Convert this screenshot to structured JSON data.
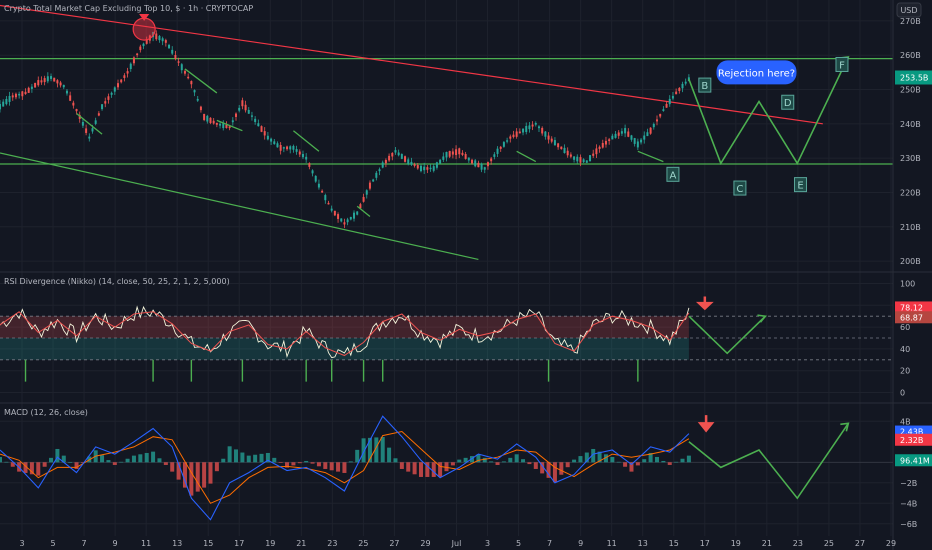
{
  "header": {
    "title": "Crypto Total Market Cap Excluding Top 10, $ · 1h · CRYPTOCAP",
    "currency_button": "USD"
  },
  "chart_data": [
    {
      "type": "line",
      "name": "Price pane",
      "title": "Crypto Total Market Cap Excluding Top 10, $ · 1h · CRYPTOCAP",
      "x_tick_labels": [
        "3",
        "5",
        "7",
        "9",
        "11",
        "13",
        "15",
        "17",
        "19",
        "21",
        "23",
        "25",
        "27",
        "29",
        "Jul",
        "3",
        "5",
        "7",
        "9",
        "11",
        "13",
        "15",
        "17",
        "19",
        "21",
        "23",
        "25",
        "27",
        "29"
      ],
      "y_tick_labels": [
        "270B",
        "260B",
        "250B",
        "240B",
        "230B",
        "220B",
        "210B",
        "200B"
      ],
      "ylim": [
        198,
        272
      ],
      "price_badge": "253.5B",
      "horizontal_levels": [
        259,
        228.3
      ],
      "price_series": [
        [
          0,
          245
        ],
        [
          2,
          248
        ],
        [
          4,
          249
        ],
        [
          6,
          252
        ],
        [
          8,
          253.5
        ],
        [
          10,
          251
        ],
        [
          12,
          244
        ],
        [
          14,
          236
        ],
        [
          16,
          245
        ],
        [
          18,
          250
        ],
        [
          20,
          255
        ],
        [
          22,
          262
        ],
        [
          24,
          266
        ],
        [
          26,
          264
        ],
        [
          28,
          258
        ],
        [
          30,
          252
        ],
        [
          32,
          242
        ],
        [
          34,
          240
        ],
        [
          36,
          239
        ],
        [
          38,
          246
        ],
        [
          40,
          241
        ],
        [
          42,
          236
        ],
        [
          44,
          233
        ],
        [
          46,
          233
        ],
        [
          48,
          230
        ],
        [
          50,
          222
        ],
        [
          52,
          215
        ],
        [
          54,
          211
        ],
        [
          56,
          214
        ],
        [
          58,
          222
        ],
        [
          60,
          228
        ],
        [
          62,
          232
        ],
        [
          64,
          229
        ],
        [
          66,
          227
        ],
        [
          68,
          227
        ],
        [
          70,
          231
        ],
        [
          72,
          232
        ],
        [
          74,
          229
        ],
        [
          76,
          227
        ],
        [
          78,
          232
        ],
        [
          80,
          236
        ],
        [
          82,
          238
        ],
        [
          84,
          240
        ],
        [
          86,
          236
        ],
        [
          88,
          233
        ],
        [
          90,
          230
        ],
        [
          92,
          229
        ],
        [
          94,
          233
        ],
        [
          96,
          236
        ],
        [
          98,
          238
        ],
        [
          100,
          234
        ],
        [
          102,
          238
        ],
        [
          104,
          244
        ],
        [
          106,
          249
        ],
        [
          108,
          253
        ]
      ],
      "projection": [
        [
          108,
          253
        ],
        [
          113,
          228.5
        ],
        [
          119,
          246.5
        ],
        [
          125,
          228.5
        ],
        [
          133,
          259.5
        ]
      ],
      "annotations": [
        {
          "label": "A",
          "x": 105.5,
          "y": 225
        },
        {
          "label": "B",
          "x": 110.5,
          "y": 251
        },
        {
          "label": "C",
          "x": 116,
          "y": 221
        },
        {
          "label": "D",
          "x": 123.5,
          "y": 246
        },
        {
          "label": "E",
          "x": 125.5,
          "y": 222
        },
        {
          "label": "F",
          "x": 132,
          "y": 257
        }
      ],
      "callout": "Rejection here?"
    },
    {
      "type": "line",
      "name": "RSI pane",
      "title": "RSI Divergence (Nikko) (14, close, 50, 25, 2, 1, 2, 5,000)",
      "y_tick_labels": [
        "100",
        "80",
        "60",
        "40",
        "20",
        "0"
      ],
      "ylim": [
        -5,
        105
      ],
      "values_badges": [
        "78.12",
        "68.87"
      ],
      "overbought": 70,
      "oversold": 30,
      "rsi_series": [
        [
          0,
          62
        ],
        [
          3,
          74
        ],
        [
          6,
          55
        ],
        [
          9,
          66
        ],
        [
          12,
          52
        ],
        [
          15,
          70
        ],
        [
          18,
          60
        ],
        [
          21,
          72
        ],
        [
          24,
          74
        ],
        [
          27,
          63
        ],
        [
          30,
          45
        ],
        [
          33,
          38
        ],
        [
          36,
          56
        ],
        [
          39,
          62
        ],
        [
          42,
          44
        ],
        [
          45,
          40
        ],
        [
          48,
          56
        ],
        [
          51,
          41
        ],
        [
          54,
          34
        ],
        [
          57,
          46
        ],
        [
          60,
          65
        ],
        [
          63,
          72
        ],
        [
          66,
          55
        ],
        [
          69,
          48
        ],
        [
          72,
          58
        ],
        [
          75,
          52
        ],
        [
          78,
          56
        ],
        [
          81,
          67
        ],
        [
          84,
          72
        ],
        [
          87,
          45
        ],
        [
          90,
          38
        ],
        [
          93,
          62
        ],
        [
          96,
          70
        ],
        [
          99,
          66
        ],
        [
          102,
          60
        ],
        [
          105,
          48
        ],
        [
          108,
          73
        ]
      ],
      "projection": [
        [
          108,
          70
        ],
        [
          114,
          36
        ],
        [
          120,
          70
        ]
      ]
    },
    {
      "type": "line",
      "name": "MACD pane",
      "title": "MACD (12, 26, close)",
      "y_tick_labels": [
        "4B",
        "−2B",
        "−4B",
        "−6B"
      ],
      "ylim": [
        -6.8,
        5.2
      ],
      "value_badges": [
        "2.43B",
        "2.32B",
        "96.41M"
      ],
      "macd_series": [
        [
          0,
          1.2
        ],
        [
          3,
          -0.5
        ],
        [
          6,
          -2.5
        ],
        [
          9,
          0.5
        ],
        [
          12,
          -1.0
        ],
        [
          15,
          1.5
        ],
        [
          18,
          0.8
        ],
        [
          21,
          2.0
        ],
        [
          24,
          3.3
        ],
        [
          27,
          1.5
        ],
        [
          30,
          -3.5
        ],
        [
          33,
          -5.6
        ],
        [
          36,
          -2.0
        ],
        [
          39,
          -1.0
        ],
        [
          42,
          0.2
        ],
        [
          45,
          -0.8
        ],
        [
          48,
          -0.5
        ],
        [
          51,
          -1.5
        ],
        [
          54,
          -2.8
        ],
        [
          57,
          1.0
        ],
        [
          60,
          4.5
        ],
        [
          63,
          2.5
        ],
        [
          66,
          0.2
        ],
        [
          69,
          -1.5
        ],
        [
          72,
          -0.5
        ],
        [
          75,
          0.8
        ],
        [
          78,
          0.3
        ],
        [
          81,
          1.8
        ],
        [
          84,
          0.5
        ],
        [
          87,
          -2.0
        ],
        [
          90,
          -1.2
        ],
        [
          93,
          0.8
        ],
        [
          96,
          1.2
        ],
        [
          99,
          -0.2
        ],
        [
          102,
          1.5
        ],
        [
          105,
          1.0
        ],
        [
          108,
          2.8
        ]
      ],
      "signal_series": [
        [
          0,
          0.8
        ],
        [
          3,
          0.2
        ],
        [
          6,
          -1.5
        ],
        [
          9,
          -0.5
        ],
        [
          12,
          -0.5
        ],
        [
          15,
          0.6
        ],
        [
          18,
          1.0
        ],
        [
          21,
          1.5
        ],
        [
          24,
          2.5
        ],
        [
          27,
          2.2
        ],
        [
          30,
          -1.0
        ],
        [
          33,
          -4.0
        ],
        [
          36,
          -3.2
        ],
        [
          39,
          -1.5
        ],
        [
          42,
          -0.5
        ],
        [
          45,
          -0.4
        ],
        [
          48,
          -0.6
        ],
        [
          51,
          -1.0
        ],
        [
          54,
          -2.0
        ],
        [
          57,
          -0.8
        ],
        [
          60,
          2.6
        ],
        [
          63,
          3.0
        ],
        [
          66,
          1.3
        ],
        [
          69,
          -0.4
        ],
        [
          72,
          -0.7
        ],
        [
          75,
          0.2
        ],
        [
          78,
          0.5
        ],
        [
          81,
          1.2
        ],
        [
          84,
          1.0
        ],
        [
          87,
          -0.5
        ],
        [
          90,
          -1.4
        ],
        [
          93,
          -0.2
        ],
        [
          96,
          0.8
        ],
        [
          99,
          0.5
        ],
        [
          102,
          0.8
        ],
        [
          105,
          1.2
        ],
        [
          108,
          2.3
        ]
      ],
      "projection": [
        [
          108,
          2.0
        ],
        [
          113,
          -0.5
        ],
        [
          119,
          1.2
        ],
        [
          125,
          -3.5
        ],
        [
          133,
          3.8
        ]
      ]
    }
  ],
  "colors": {
    "background": "#131722",
    "grid": "#1e222d",
    "up": "#26a69a",
    "down": "#ef5350",
    "trend_red": "#f23645",
    "trend_green": "#4caf50",
    "projection": "#4caf50",
    "macd_line": "#2962ff",
    "signal_line": "#ff6d00",
    "rsi_line": "#f5f5dc",
    "callout": "#2962ff"
  }
}
